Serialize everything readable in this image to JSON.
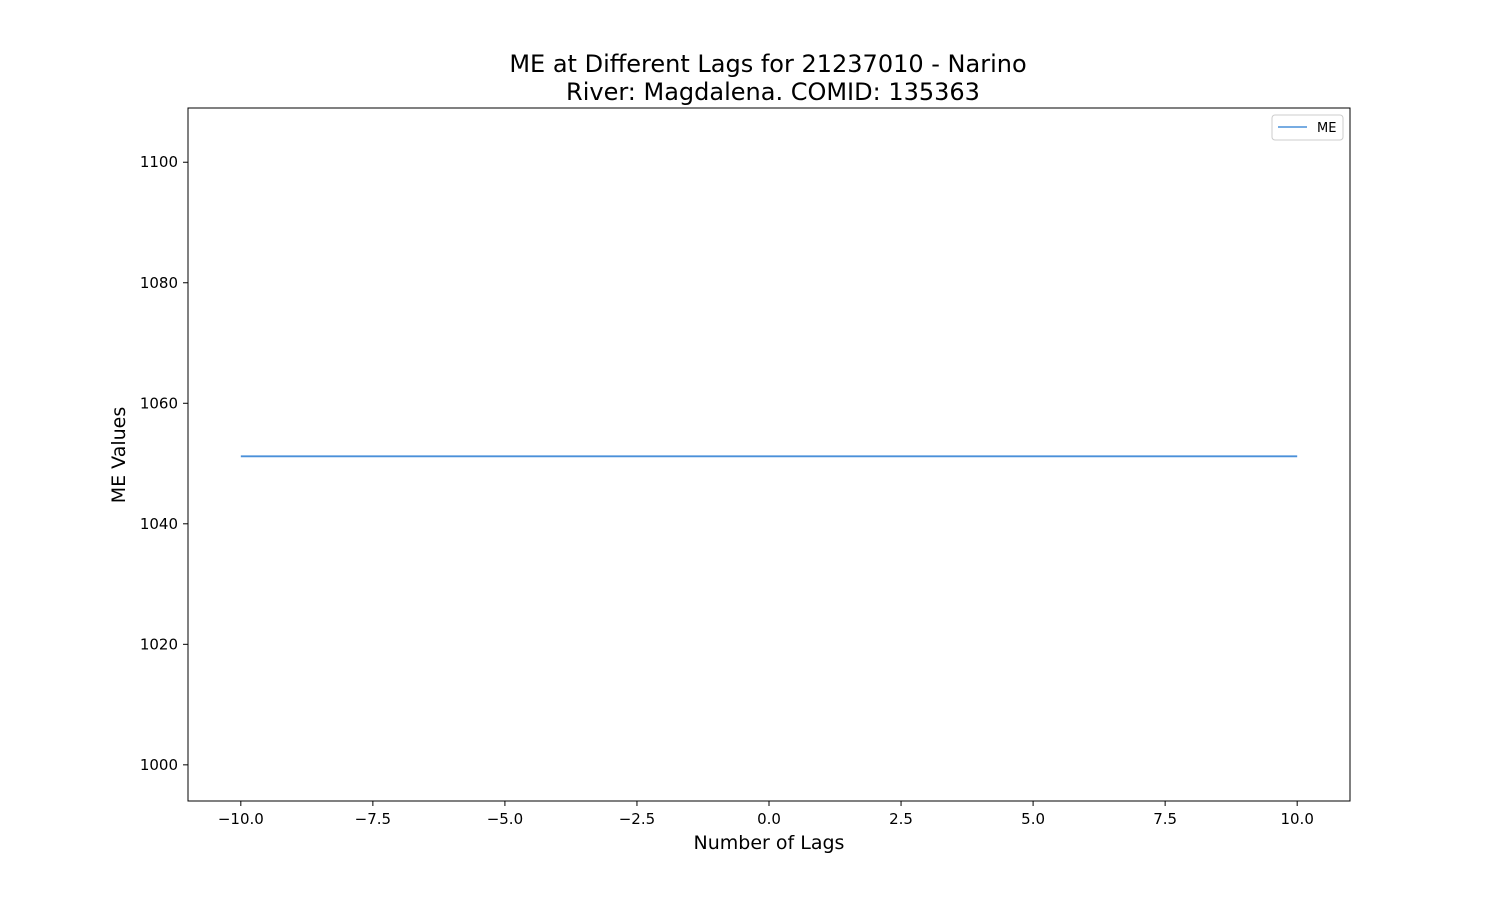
{
  "chart_data": {
    "type": "line",
    "title_line1": "ME at Different Lags for 21237010 - Narino",
    "title_line2": "River: Magdalena. COMID: 135363",
    "xlabel": "Number of Lags",
    "ylabel": "ME Values",
    "xlim": [
      -11,
      11
    ],
    "ylim": [
      994,
      1109
    ],
    "x_ticks": [
      -10.0,
      -7.5,
      -5.0,
      -2.5,
      0.0,
      2.5,
      5.0,
      7.5,
      10.0
    ],
    "x_tick_labels": [
      "−10.0",
      "−7.5",
      "−5.0",
      "−2.5",
      "0.0",
      "2.5",
      "5.0",
      "7.5",
      "10.0"
    ],
    "y_ticks": [
      1000,
      1020,
      1040,
      1060,
      1080,
      1100
    ],
    "y_tick_labels": [
      "1000",
      "1020",
      "1040",
      "1060",
      "1080",
      "1100"
    ],
    "grid": false,
    "legend_position": "top-right",
    "series": [
      {
        "name": "ME",
        "color": "#4a90d9",
        "x": [
          -10,
          -9,
          -8,
          -7,
          -6,
          -5,
          -4,
          -3,
          -2,
          -1,
          0,
          1,
          2,
          3,
          4,
          5,
          6,
          7,
          8,
          9,
          10
        ],
        "y": [
          1051.2,
          1051.2,
          1051.2,
          1051.2,
          1051.2,
          1051.2,
          1051.2,
          1051.2,
          1051.2,
          1051.2,
          1051.2,
          1051.2,
          1051.2,
          1051.2,
          1051.2,
          1051.2,
          1051.2,
          1051.2,
          1051.2,
          1051.2,
          1051.2
        ]
      }
    ]
  }
}
